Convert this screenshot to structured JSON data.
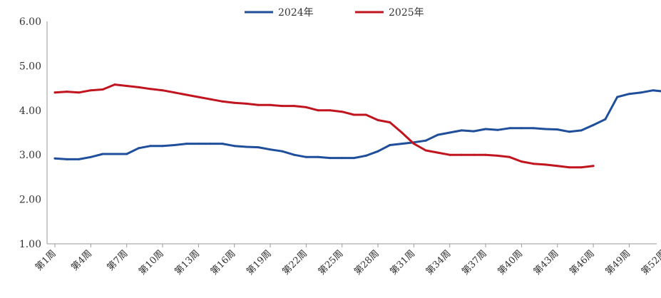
{
  "chart_data": {
    "type": "line",
    "ylim": [
      1.0,
      6.0
    ],
    "y_ticks": [
      "1.00",
      "2.00",
      "3.00",
      "4.00",
      "5.00",
      "6.00"
    ],
    "x_tick_labels": [
      "第1周",
      "第4周",
      "第7周",
      "第10周",
      "第13周",
      "第16周",
      "第19周",
      "第22周",
      "第25周",
      "第28周",
      "第31周",
      "第34周",
      "第37周",
      "第40周",
      "第43周",
      "第46周",
      "第49周",
      "第52周"
    ],
    "x_tick_weeks": [
      1,
      4,
      7,
      10,
      13,
      16,
      19,
      22,
      25,
      28,
      31,
      34,
      37,
      40,
      43,
      46,
      49,
      52
    ],
    "legend_position": "top",
    "grid": false,
    "series": [
      {
        "name": "2024年",
        "color": "#1f4e9a",
        "x": [
          1,
          2,
          3,
          4,
          5,
          6,
          7,
          8,
          9,
          10,
          11,
          12,
          13,
          14,
          15,
          16,
          17,
          18,
          19,
          20,
          21,
          22,
          23,
          24,
          25,
          26,
          27,
          28,
          29,
          30,
          31,
          32,
          33,
          34,
          35,
          36,
          37,
          38,
          39,
          40,
          41,
          42,
          43,
          44,
          45,
          46,
          47,
          48,
          49,
          50,
          51,
          52
        ],
        "values": [
          2.92,
          2.9,
          2.9,
          2.95,
          3.02,
          3.02,
          3.02,
          3.15,
          3.2,
          3.2,
          3.22,
          3.25,
          3.25,
          3.25,
          3.25,
          3.2,
          3.18,
          3.17,
          3.12,
          3.08,
          3.0,
          2.95,
          2.95,
          2.93,
          2.93,
          2.93,
          2.98,
          3.08,
          3.22,
          3.25,
          3.28,
          3.32,
          3.45,
          3.5,
          3.55,
          3.53,
          3.58,
          3.56,
          3.6,
          3.6,
          3.6,
          3.58,
          3.57,
          3.52,
          3.55,
          3.67,
          3.8,
          4.3,
          4.37,
          4.4,
          4.45,
          4.42
        ]
      },
      {
        "name": "2025年",
        "color": "#c0151f",
        "x": [
          1,
          2,
          3,
          4,
          5,
          6,
          7,
          8,
          9,
          10,
          11,
          12,
          13,
          14,
          15,
          16,
          17,
          18,
          19,
          20,
          21,
          22,
          23,
          24,
          25,
          26,
          27,
          28,
          29,
          30,
          31,
          32,
          33,
          34,
          35,
          36,
          37,
          38,
          39,
          40,
          41,
          42,
          43,
          44,
          45,
          46
        ],
        "values": [
          4.4,
          4.42,
          4.4,
          4.45,
          4.47,
          4.58,
          4.55,
          4.52,
          4.48,
          4.45,
          4.4,
          4.35,
          4.3,
          4.25,
          4.2,
          4.17,
          4.15,
          4.12,
          4.12,
          4.1,
          4.1,
          4.07,
          4.0,
          4.0,
          3.97,
          3.9,
          3.9,
          3.78,
          3.73,
          3.5,
          3.25,
          3.1,
          3.05,
          3.0,
          3.0,
          3.0,
          3.0,
          2.98,
          2.95,
          2.85,
          2.8,
          2.78,
          2.75,
          2.72,
          2.72,
          2.75
        ]
      }
    ]
  }
}
